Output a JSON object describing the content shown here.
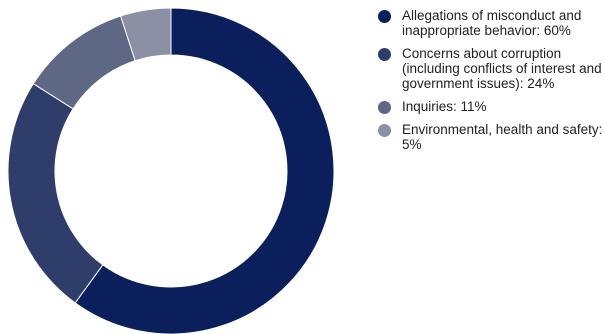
{
  "chart_data": {
    "type": "pie",
    "donut": true,
    "slices": [
      {
        "label": "Allegations of misconduct and inappropriate behavior: 60%",
        "value": 60,
        "color": "#0b1f5c"
      },
      {
        "label": "Concerns about corruption (including conflicts of interest and government issues): 24%",
        "value": 24,
        "color": "#2f3d6b"
      },
      {
        "label": "Inquiries: 11%",
        "value": 11,
        "color": "#5e6784"
      },
      {
        "label": "Environmental, health and safety: 5%",
        "value": 5,
        "color": "#8b90a4"
      }
    ],
    "legend_position": "right"
  }
}
